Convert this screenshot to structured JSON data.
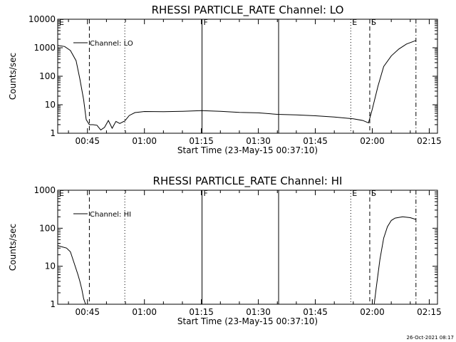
{
  "chart_data": [
    {
      "type": "line",
      "title": "RHESSI PARTICLE_RATE Channel: LO",
      "xlabel": "Start Time (23-May-15 00:37:10)",
      "ylabel": "Counts/sec",
      "yscale": "log",
      "ylim": [
        1,
        10000
      ],
      "xlim": [
        "00:37:10",
        "02:17:10"
      ],
      "x_ticks": [
        "00:45",
        "01:00",
        "01:15",
        "01:30",
        "01:45",
        "02:00",
        "02:15"
      ],
      "y_ticks": [
        "1",
        "10",
        "100",
        "1000",
        "10000"
      ],
      "legend": {
        "label": "Channel: LO",
        "position": "top-left"
      },
      "grid": false,
      "markers": [
        {
          "label": "E",
          "time": "00:37:10",
          "style": "dotted"
        },
        {
          "label": "",
          "time": "00:45:30",
          "style": "dashed"
        },
        {
          "label": "",
          "time": "00:54:50",
          "style": "dotted"
        },
        {
          "label": "F",
          "time": "01:15:10",
          "style": "solid"
        },
        {
          "label": "",
          "time": "01:35:20",
          "style": "solid"
        },
        {
          "label": "E",
          "time": "01:54:20",
          "style": "dotted"
        },
        {
          "label": "S",
          "time": "01:59:20",
          "style": "dashed"
        },
        {
          "label": "",
          "time": "02:11:30",
          "style": "dashdot"
        }
      ],
      "series": [
        {
          "x": [
            "00:37:10",
            "00:39:00",
            "00:40:30",
            "00:42:00",
            "00:43:00",
            "00:44:00",
            "00:44:40",
            "00:45:30",
            "00:46:30",
            "00:47:30",
            "00:48:30",
            "00:49:30",
            "00:50:30",
            "00:51:30",
            "00:52:30",
            "00:53:30",
            "00:54:50",
            "00:56:00",
            "00:57:30",
            "00:59:00",
            "01:00:00",
            "01:05:00",
            "01:10:00",
            "01:15:00",
            "01:20:00",
            "01:25:00",
            "01:30:00",
            "01:35:00",
            "01:40:00",
            "01:45:00",
            "01:50:00",
            "01:55:00",
            "01:57:30",
            "01:59:00",
            "02:00:00",
            "02:01:30",
            "02:03:00",
            "02:05:00",
            "02:07:00",
            "02:09:00",
            "02:11:30"
          ],
          "values": [
            1200,
            1100,
            800,
            350,
            80,
            15,
            3,
            2,
            2,
            1.9,
            1.3,
            1.6,
            2.8,
            1.5,
            2.6,
            2.2,
            2.7,
            4.2,
            5.3,
            5.6,
            5.8,
            5.7,
            5.9,
            6.2,
            5.9,
            5.4,
            5.2,
            4.6,
            4.4,
            4.1,
            3.7,
            3.2,
            2.8,
            2.3,
            7,
            45,
            220,
            520,
            900,
            1350,
            1800
          ]
        }
      ]
    },
    {
      "type": "line",
      "title": "RHESSI PARTICLE_RATE Channel: HI",
      "xlabel": "Start Time (23-May-15 00:37:10)",
      "ylabel": "Counts/sec",
      "yscale": "log",
      "ylim": [
        1,
        1000
      ],
      "xlim": [
        "00:37:10",
        "02:17:10"
      ],
      "x_ticks": [
        "00:45",
        "01:00",
        "01:15",
        "01:30",
        "01:45",
        "02:00",
        "02:15"
      ],
      "y_ticks": [
        "1",
        "10",
        "100",
        "1000"
      ],
      "legend": {
        "label": "Channel: HI",
        "position": "top-left"
      },
      "grid": false,
      "markers": [
        {
          "label": "E",
          "time": "00:37:10",
          "style": "dotted"
        },
        {
          "label": "",
          "time": "00:45:30",
          "style": "dashed"
        },
        {
          "label": "",
          "time": "00:54:50",
          "style": "dotted"
        },
        {
          "label": "F",
          "time": "01:15:10",
          "style": "solid"
        },
        {
          "label": "",
          "time": "01:35:20",
          "style": "solid"
        },
        {
          "label": "E",
          "time": "01:54:20",
          "style": "dotted"
        },
        {
          "label": "S",
          "time": "01:59:20",
          "style": "dashed"
        },
        {
          "label": "",
          "time": "02:11:30",
          "style": "dashdot"
        }
      ],
      "series": [
        {
          "x": [
            "00:37:10",
            "00:38:00",
            "00:39:30",
            "00:40:30",
            "00:41:30",
            "00:42:30",
            "00:43:00",
            "00:43:30",
            "00:44:00",
            "00:44:30",
            "02:00:30",
            "02:01:00",
            "02:02:00",
            "02:03:00",
            "02:04:00",
            "02:05:00",
            "02:06:00",
            "02:08:00",
            "02:10:00",
            "02:11:30"
          ],
          "values": [
            35,
            33,
            30,
            24,
            12,
            6,
            4,
            2.5,
            1.4,
            1,
            1,
            2.5,
            15,
            55,
            110,
            160,
            185,
            200,
            190,
            170
          ]
        }
      ]
    }
  ],
  "footer": {
    "stamp": "26-Oct-2021 08:17"
  }
}
